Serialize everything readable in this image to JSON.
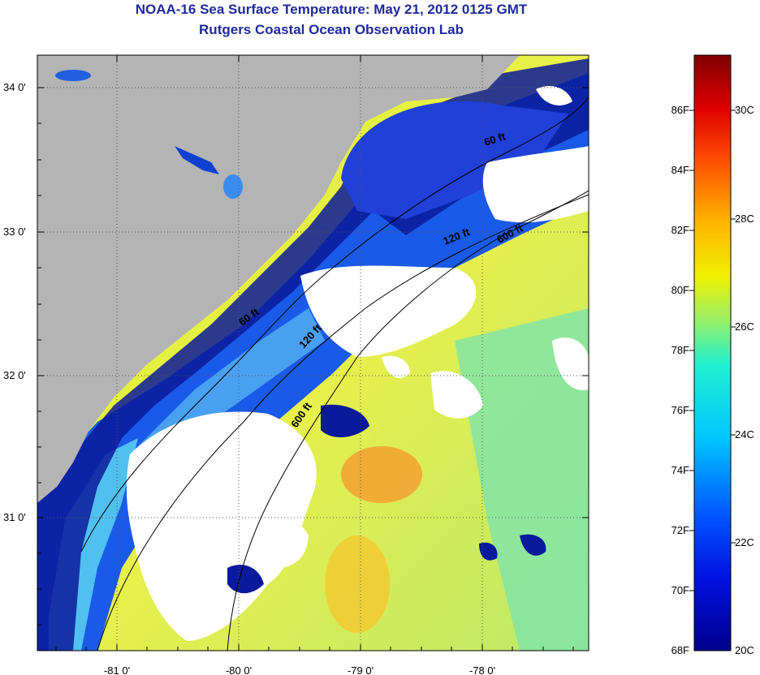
{
  "title": "NOAA-16 Sea Surface Temperature:  May 21, 2012 0125 GMT",
  "subtitle": "Rutgers Coastal Ocean Observation Lab",
  "map": {
    "lat_labels": [
      "34 0'",
      "33 0'",
      "32 0'",
      "31 0'"
    ],
    "lon_labels": [
      "-81 0'",
      "-80 0'",
      "-79 0'",
      "-78 0'"
    ],
    "contour_labels": [
      "60 ft",
      "120 ft",
      "600 ft",
      "60 ft",
      "120 ft",
      "600 ft"
    ]
  },
  "colorbar": {
    "fahrenheit_labels": [
      "86F",
      "84F",
      "82F",
      "80F",
      "78F",
      "76F",
      "74F",
      "72F",
      "70F",
      "68F"
    ],
    "celsius_labels": [
      "30C",
      "28C",
      "26C",
      "24C",
      "22C",
      "20C"
    ]
  },
  "colors": {
    "land": "#b4b4b4",
    "cloud": "#ffffff",
    "title": "#1f2a9c",
    "cold": "#000a8a",
    "warm": "#8a0000"
  }
}
